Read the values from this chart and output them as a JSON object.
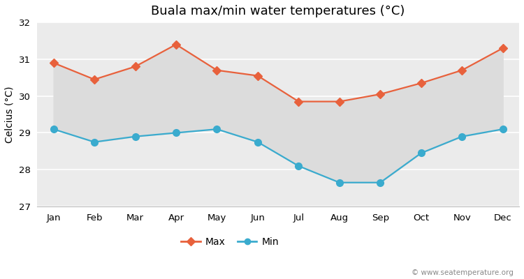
{
  "title": "Buala max/min water temperatures (°C)",
  "ylabel": "Celcius (°C)",
  "months": [
    "Jan",
    "Feb",
    "Mar",
    "Apr",
    "May",
    "Jun",
    "Jul",
    "Aug",
    "Sep",
    "Oct",
    "Nov",
    "Dec"
  ],
  "max_values": [
    30.9,
    30.45,
    30.8,
    31.4,
    30.7,
    30.55,
    29.85,
    29.85,
    30.05,
    30.35,
    30.7,
    31.3
  ],
  "min_values": [
    29.1,
    28.75,
    28.9,
    29.0,
    29.1,
    28.75,
    28.1,
    27.65,
    27.65,
    28.45,
    28.9,
    29.1
  ],
  "max_color": "#E8613C",
  "min_color": "#3AABCE",
  "fill_color": "#DCDCDC",
  "bg_color": "#EBEBEB",
  "grid_color": "#FFFFFF",
  "ylim": [
    27,
    32
  ],
  "yticks": [
    27,
    28,
    29,
    30,
    31,
    32
  ],
  "watermark": "© www.seatemperature.org",
  "legend_max": "Max",
  "legend_min": "Min",
  "title_fontsize": 13,
  "label_fontsize": 10,
  "tick_fontsize": 9.5
}
